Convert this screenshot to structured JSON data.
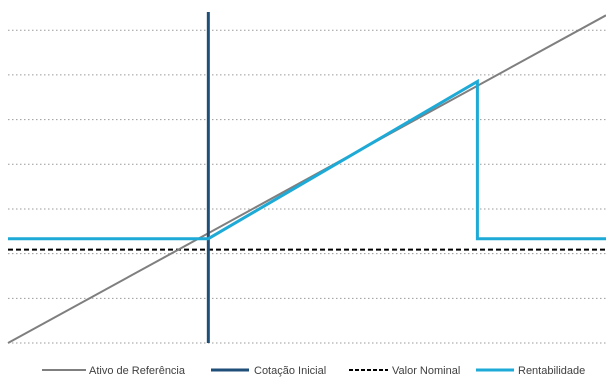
{
  "chart_data": {
    "type": "line",
    "title": "",
    "xlabel": "",
    "ylabel": "",
    "x_range": [
      0,
      100
    ],
    "y_range": [
      0,
      100
    ],
    "grid": true,
    "gridlines_y": [
      0,
      13.5,
      27,
      40.5,
      54,
      67.5,
      81,
      94.5
    ],
    "legend_position": "bottom",
    "reference_levels": {
      "valor_nominal_y": 28.2,
      "cotacao_inicial_x": 33.5
    },
    "series": [
      {
        "name": "Ativo de Referência",
        "color": "#7f7f7f",
        "style": "solid",
        "points": [
          [
            0,
            0
          ],
          [
            100,
            99
          ]
        ]
      },
      {
        "name": "Cotação Inicial",
        "color": "#1f4e79",
        "style": "solid",
        "vertical_at_x": 33.5
      },
      {
        "name": "Valor Nominal",
        "color": "#000000",
        "style": "dashed",
        "horizontal_at_y": 28.2
      },
      {
        "name": "Rentabilidade",
        "color": "#1eaad6",
        "style": "solid",
        "points": [
          [
            0,
            31.5
          ],
          [
            33.5,
            31.5
          ],
          [
            78.5,
            79
          ],
          [
            78.5,
            31.5
          ],
          [
            100,
            31.5
          ]
        ]
      }
    ]
  }
}
